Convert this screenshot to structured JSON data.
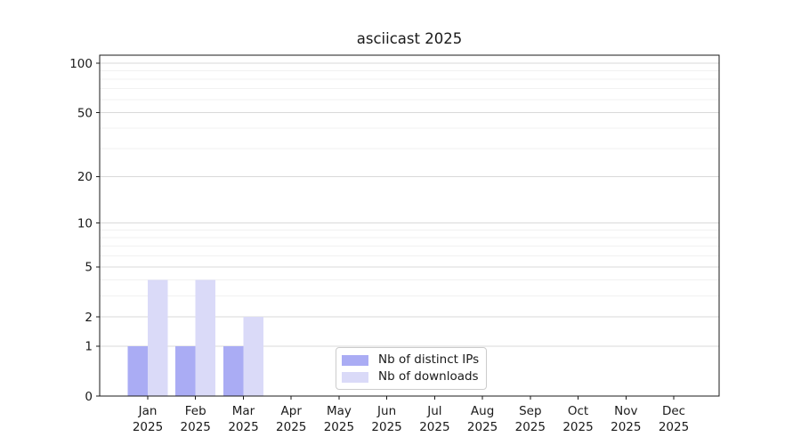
{
  "chart_data": {
    "type": "bar",
    "title": "asciicast 2025",
    "categories": [
      {
        "month": "Jan",
        "year": "2025"
      },
      {
        "month": "Feb",
        "year": "2025"
      },
      {
        "month": "Mar",
        "year": "2025"
      },
      {
        "month": "Apr",
        "year": "2025"
      },
      {
        "month": "May",
        "year": "2025"
      },
      {
        "month": "Jun",
        "year": "2025"
      },
      {
        "month": "Jul",
        "year": "2025"
      },
      {
        "month": "Aug",
        "year": "2025"
      },
      {
        "month": "Sep",
        "year": "2025"
      },
      {
        "month": "Oct",
        "year": "2025"
      },
      {
        "month": "Nov",
        "year": "2025"
      },
      {
        "month": "Dec",
        "year": "2025"
      }
    ],
    "series": [
      {
        "name": "Nb of distinct IPs",
        "color": "#aaacf4",
        "values": [
          1,
          1,
          1,
          0,
          0,
          0,
          0,
          0,
          0,
          0,
          0,
          0
        ]
      },
      {
        "name": "Nb of downloads",
        "color": "#dadaf8",
        "values": [
          4,
          4,
          2,
          0,
          0,
          0,
          0,
          0,
          0,
          0,
          0,
          0
        ]
      }
    ],
    "y_scale": "log1p",
    "y_ticks": [
      100,
      50,
      20,
      10,
      5,
      2,
      1,
      0
    ],
    "y_minor_ticks": [
      3,
      4,
      6,
      7,
      8,
      9,
      30,
      40,
      60,
      70,
      80,
      90
    ],
    "ylim": [
      0,
      112
    ],
    "grid": "horizontal",
    "legend_position": "lower center",
    "colors": {
      "background": "#ffffff",
      "axis": "#1a1a1a",
      "text": "#1a1a1a",
      "grid_major": "#d9d9d9",
      "grid_minor": "#f1f1f1",
      "legend_border": "#cccccc"
    }
  }
}
